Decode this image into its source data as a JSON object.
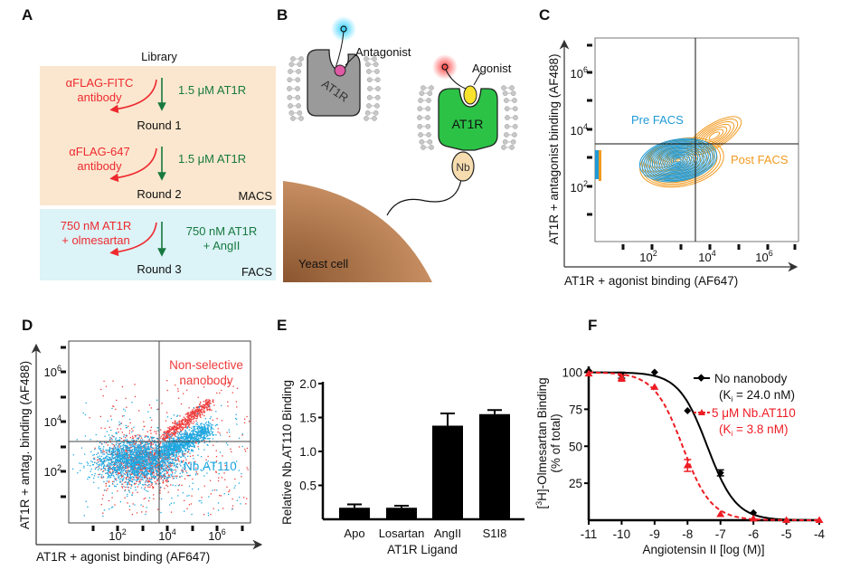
{
  "panels": {
    "A": {
      "label": "A",
      "library": "Library",
      "steps": [
        {
          "red_line1": "αFLAG-FITC",
          "red_line2": "antibody",
          "green_line1": "1.5 μM AT1R",
          "green_line2": "",
          "round": "Round 1"
        },
        {
          "red_line1": "αFLAG-647",
          "red_line2": "antibody",
          "green_line1": "1.5 μM AT1R",
          "green_line2": "",
          "round": "Round 2"
        },
        {
          "red_line1": "750 nM AT1R",
          "red_line2": "+ olmesartan",
          "green_line1": "750 nM AT1R",
          "green_line2": "+ AngII",
          "round": "Round 3"
        }
      ],
      "macs_label": "MACS",
      "facs_label": "FACS",
      "colors": {
        "macs_bg": "#fbe7cf",
        "facs_bg": "#dcf3f7",
        "negative": "#ee2a2f",
        "positive": "#17793f"
      }
    },
    "B": {
      "label": "B",
      "antagonist": "Antagonist",
      "agonist": "Agonist",
      "receptor": "AT1R",
      "nanobody": "Nb",
      "cell": "Yeast cell",
      "colors": {
        "inactive_receptor": "#9a9a9a",
        "active_receptor": "#2bc246",
        "antagonist": "#e05aa6",
        "agonist": "#f7e22c",
        "nanobody": "#f6dcae",
        "cell": "#b7794a"
      }
    },
    "C": {
      "label": "C",
      "xlabel": "AT1R + agonist binding (AF647)",
      "ylabel": "AT1R + antagonist binding (AF488)",
      "tick_base": "10",
      "tick_exps": [
        "2",
        "4",
        "6"
      ],
      "pre_label": "Pre FACS",
      "post_label": "Post FACS"
    },
    "D": {
      "label": "D",
      "xlabel": "AT1R + agonist binding (AF647)",
      "ylabel": "AT1R + antag. binding (AF488)",
      "tick_base": "10",
      "tick_exps": [
        "2",
        "4",
        "6"
      ],
      "nonselective_line1": "Non-selective",
      "nonselective_line2": "nanobody",
      "selective_label": "Nb.AT110"
    },
    "E": {
      "label": "E"
    },
    "F": {
      "label": "F",
      "ylabel_pre": "[",
      "ylabel_sup": "3",
      "ylabel_post": "H]-Olmesartan Binding",
      "ylabel2": "(% of total)",
      "legend": [
        {
          "name": "No nanobody",
          "ki_pre": "(K",
          "ki_sub": "i",
          "ki_post": " = 24.0 nM)"
        },
        {
          "name": "5 μM Nb.AT110",
          "ki_pre": "(K",
          "ki_sub": "i",
          "ki_post": " = 3.8 nM)"
        }
      ]
    }
  },
  "chart_data": [
    {
      "panel": "C",
      "type": "contour",
      "xlabel": "AT1R + agonist binding (AF647)",
      "ylabel": "AT1R + antagonist binding (AF488)",
      "scale": "log",
      "x_ticks": [
        "10^2",
        "10^4",
        "10^6"
      ],
      "y_ticks": [
        "10^2",
        "10^4",
        "10^6"
      ],
      "series": [
        {
          "name": "Pre FACS",
          "color": "#1f9ad6"
        },
        {
          "name": "Post FACS",
          "color": "#f29a1f"
        }
      ]
    },
    {
      "panel": "D",
      "type": "scatter",
      "xlabel": "AT1R + agonist binding (AF647)",
      "ylabel": "AT1R + antag. binding (AF488)",
      "scale": "log",
      "x_ticks": [
        "10^2",
        "10^4",
        "10^6"
      ],
      "y_ticks": [
        "10^2",
        "10^4",
        "10^6"
      ],
      "series": [
        {
          "name": "Non-selective nanobody",
          "color": "#ee3b3b"
        },
        {
          "name": "Nb.AT110",
          "color": "#1ea7e0"
        }
      ]
    },
    {
      "panel": "E",
      "type": "bar",
      "categories": [
        "Apo",
        "Losartan",
        "AngII",
        "S1I8"
      ],
      "values": [
        0.17,
        0.17,
        1.38,
        1.55
      ],
      "errors": [
        0.05,
        0.03,
        0.18,
        0.06
      ],
      "xlabel": "AT1R Ligand",
      "ylabel": "Relative Nb.AT110 Binding",
      "yticks": [
        "0.5",
        "1.0",
        "1.5",
        "2.0"
      ],
      "ylim": [
        0,
        2.0
      ],
      "color": "#000000"
    },
    {
      "panel": "F",
      "type": "line",
      "xlabel": "Angiotensin II [log (M)]",
      "ylabel": "[3H]-Olmesartan Binding (% of total)",
      "xlim": [
        -11,
        -4
      ],
      "ylim": [
        0,
        100
      ],
      "xticks": [
        "-11",
        "-10",
        "-9",
        "-8",
        "-7",
        "-6",
        "-5",
        "-4"
      ],
      "yticks": [
        "25",
        "50",
        "75",
        "100"
      ],
      "series": [
        {
          "name": "No nanobody",
          "color": "#000000",
          "style": "solid",
          "marker": "diamond",
          "x": [
            -11,
            -10,
            -9,
            -8,
            -7,
            -6
          ],
          "y": [
            101,
            98,
            100,
            74,
            32,
            5
          ],
          "err": [
            0,
            2,
            0,
            0,
            2,
            0
          ]
        },
        {
          "name": "5 μM Nb.AT110",
          "color": "#ee1c24",
          "style": "dashed",
          "marker": "triangle",
          "x": [
            -11,
            -10,
            -9,
            -8,
            -7,
            -6,
            -5,
            -4
          ],
          "y": [
            99,
            96,
            90,
            37,
            4,
            1,
            0,
            0
          ],
          "err": [
            0,
            2,
            0,
            4,
            0,
            0,
            0,
            0
          ]
        }
      ]
    }
  ]
}
